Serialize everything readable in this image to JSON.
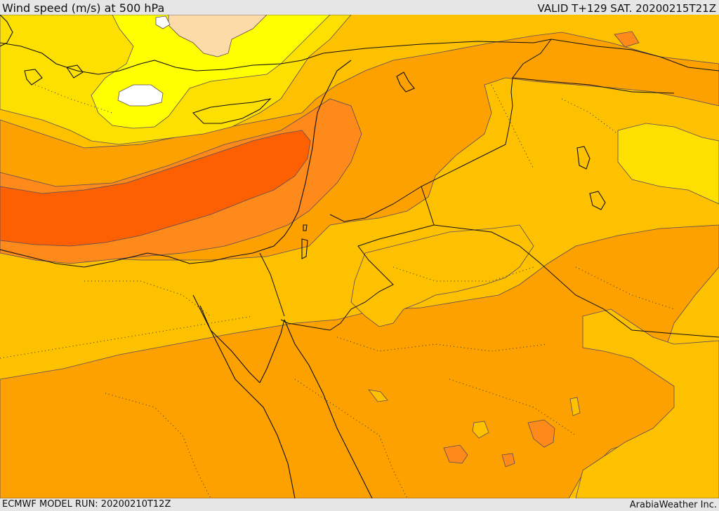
{
  "header": {
    "title": "Wind speed (m/s) at 500 hPa",
    "valid": "VALID T+129 SAT. 20200215T21Z"
  },
  "footer": {
    "model_run": "ECMWF MODEL RUN: 20200210T12Z",
    "credit": "ArabiaWeather Inc."
  },
  "map": {
    "region": "Eastern Mediterranean and Middle East",
    "palette": {
      "white": "#ffffff",
      "peach": "#fddba8",
      "yellow": "#ffff00",
      "gold": "#fde000",
      "amber": "#fdc100",
      "orange": "#fda100",
      "dark_orange": "#fd8a1a",
      "red_orange": "#fd6000"
    }
  }
}
